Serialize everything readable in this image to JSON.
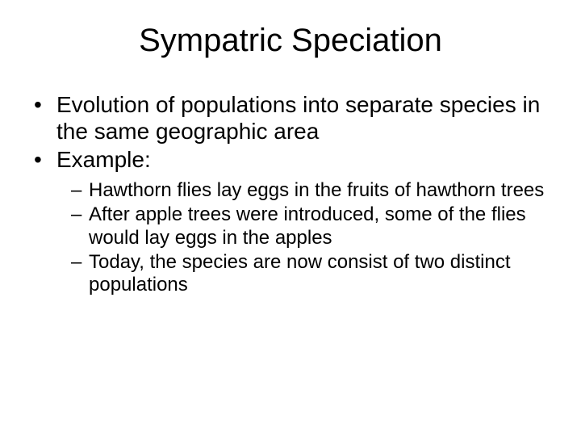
{
  "title": "Sympatric Speciation",
  "bullets": {
    "b1": "Evolution of populations into separate species in the same geographic area",
    "b2": "Example:",
    "sub": {
      "s1": "Hawthorn flies lay eggs in the fruits of hawthorn trees",
      "s2": "After apple trees were introduced, some of the flies would lay eggs in the apples",
      "s3": "Today, the species are now consist of two distinct populations"
    }
  }
}
